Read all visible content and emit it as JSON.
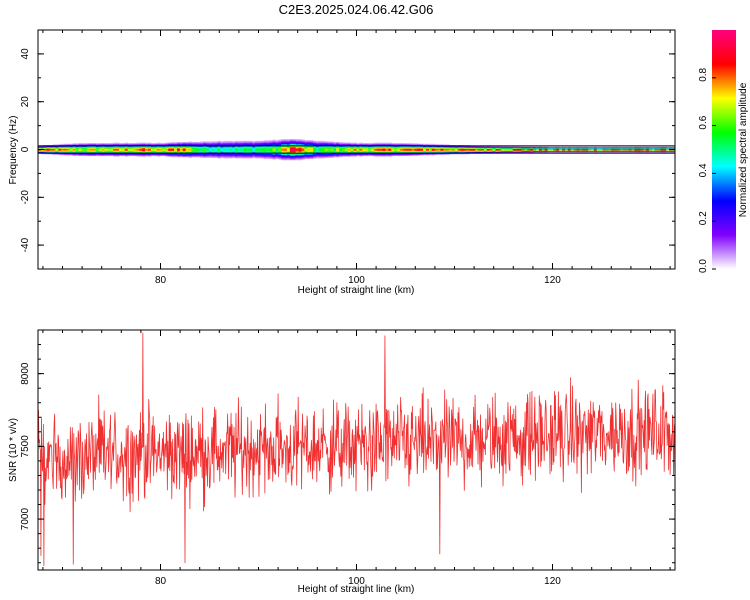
{
  "chart_data": [
    {
      "type": "heatmap",
      "title": "C2E3.2025.024.06.42.G06",
      "xlabel": "Height of straight line (km)",
      "ylabel": "Frequency (Hz)",
      "xlim": [
        67.5,
        132.5
      ],
      "ylim": [
        -50,
        50
      ],
      "xticks": [
        80,
        100,
        120
      ],
      "yticks": [
        40,
        20,
        0,
        -20,
        -40
      ],
      "grid": false,
      "colorbar": {
        "label": "Normalized spectral amplitude",
        "range": [
          0,
          1
        ],
        "ticks": [
          "0.0",
          "0.2",
          "0.4",
          "0.6",
          "0.8"
        ],
        "colors": [
          "#ffffff",
          "#8000ff",
          "#0000ff",
          "#00ffff",
          "#00ff00",
          "#ffff00",
          "#ff0000",
          "#ff0080"
        ]
      },
      "band": {
        "center_hz": 0,
        "half_width_hz": 1.5,
        "spread_hz": [
          [
            67.5,
            1.5
          ],
          [
            72,
            2.5
          ],
          [
            75,
            2.5
          ],
          [
            80,
            2.5
          ],
          [
            83,
            3.0
          ],
          [
            86,
            3.5
          ],
          [
            90,
            3.5
          ],
          [
            93,
            4.0
          ],
          [
            96,
            3.5
          ],
          [
            100,
            2.5
          ],
          [
            104,
            2.5
          ],
          [
            108,
            2.0
          ],
          [
            112,
            1.5
          ],
          [
            120,
            1.0
          ],
          [
            132.5,
            1.0
          ]
        ],
        "peak_amplitude": [
          [
            67.5,
            0.85
          ],
          [
            72,
            0.7
          ],
          [
            76,
            0.75
          ],
          [
            78,
            0.85
          ],
          [
            80,
            0.7
          ],
          [
            82,
            0.9
          ],
          [
            84,
            0.55
          ],
          [
            88,
            0.5
          ],
          [
            92,
            0.6
          ],
          [
            93.5,
            0.95
          ],
          [
            96,
            0.55
          ],
          [
            100,
            0.75
          ],
          [
            104,
            0.8
          ],
          [
            108,
            0.85
          ],
          [
            112,
            0.85
          ],
          [
            116,
            0.9
          ],
          [
            120,
            0.9
          ],
          [
            126,
            0.92
          ],
          [
            132.5,
            0.95
          ]
        ]
      }
    },
    {
      "type": "line",
      "xlabel": "Height of straight line (km)",
      "ylabel": "SNR (10 * v/v)",
      "xlim": [
        67.5,
        132.5
      ],
      "ylim": [
        6650,
        8300
      ],
      "xticks": [
        80,
        100,
        120
      ],
      "yticks": [
        7000,
        7500,
        8000
      ],
      "grid": false,
      "series": [
        {
          "color": "#f03030",
          "x_step": 0.05,
          "mean_profile": [
            [
              67.5,
              7400
            ],
            [
              75,
              7450
            ],
            [
              80,
              7450
            ],
            [
              90,
              7480
            ],
            [
              100,
              7500
            ],
            [
              110,
              7530
            ],
            [
              120,
              7580
            ],
            [
              132.5,
              7600
            ]
          ],
          "noise_amplitude": 230,
          "notable_extremes": [
            [
              78.2,
              8280
            ],
            [
              102.9,
              8260
            ],
            [
              68.1,
              6680
            ],
            [
              71.1,
              6690
            ],
            [
              108.5,
              6760
            ],
            [
              82.5,
              6700
            ],
            [
              67.8,
              6750
            ]
          ]
        }
      ]
    }
  ]
}
